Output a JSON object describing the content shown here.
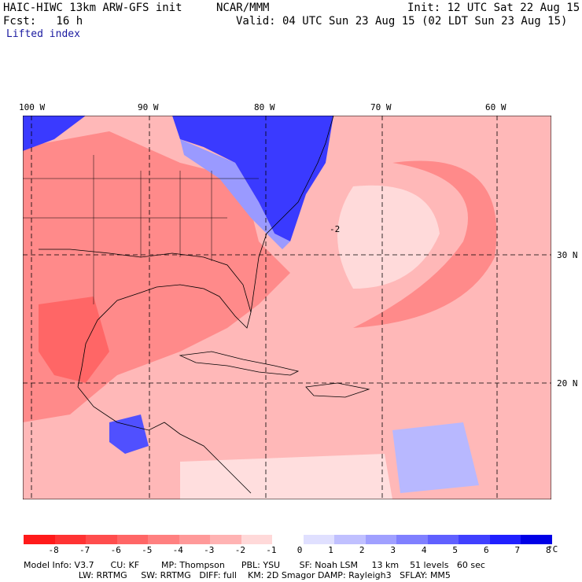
{
  "header": {
    "model": "HAIC-HIWC 13km ARW-GFS init",
    "org": "NCAR/MMM",
    "init": "Init: 12 UTC Sat 22 Aug 15",
    "fcst": "Fcst:   16 h",
    "valid": "Valid: 04 UTC Sun 23 Aug 15 (02 LDT Sun 23 Aug 15)",
    "field": "Lifted index"
  },
  "map": {
    "lon_labels": [
      "100 W",
      "90 W",
      "80 W",
      "70 W",
      "60 W"
    ],
    "lat_labels": [
      "30 N",
      "20 N"
    ],
    "contour_label": "-2"
  },
  "colorbar": {
    "unit": "°C",
    "labels": [
      "-8",
      "-7",
      "-6",
      "-5",
      "-4",
      "-3",
      "-2",
      "-1",
      "0",
      "1",
      "2",
      "3",
      "4",
      "5",
      "6",
      "7",
      "8"
    ],
    "colors": [
      "#ff1a1a",
      "#ff3333",
      "#ff4d4d",
      "#ff6666",
      "#ff8080",
      "#ff9999",
      "#ffb3b3",
      "#ffd9d9",
      "#ffffff",
      "#e0e0ff",
      "#c0c0ff",
      "#a0a0ff",
      "#8080ff",
      "#6060ff",
      "#4040ff",
      "#2020ff",
      "#0000e6"
    ]
  },
  "model_info": {
    "line1": "Model Info: V3.7      CU: KF        MP: Thompson      PBL: YSU       SF: Noah LSM     13 km    51 levels   60 sec",
    "line2": "                    LW: RRTMG     SW: RRTMG   DIFF: full    KM: 2D Smagor DAMP: Rayleigh3   SFLAY: MM5"
  }
}
